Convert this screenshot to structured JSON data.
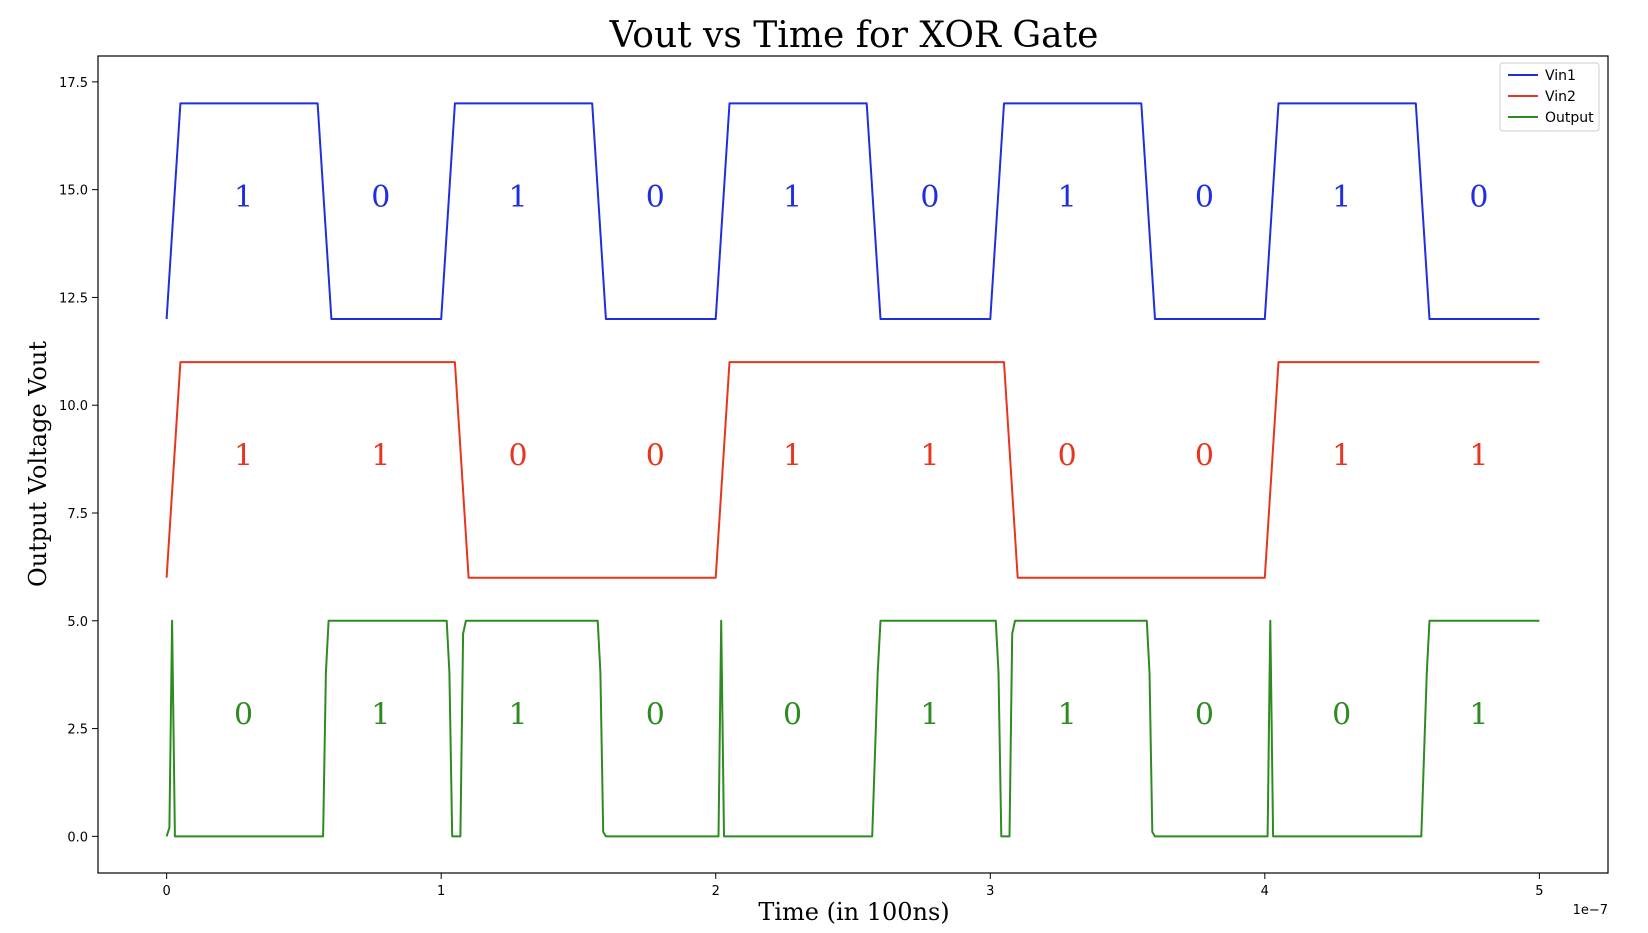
{
  "chart_data": {
    "type": "line",
    "title": "Vout vs Time for XOR Gate",
    "xlabel": "Time (in 100ns)",
    "ylabel": "Output Voltage Vout",
    "x_offset_label": "1e−7",
    "xlim": [
      -0.25,
      5.25
    ],
    "ylim": [
      -0.85,
      18.1
    ],
    "x_ticks": [
      0,
      1,
      2,
      3,
      4,
      5
    ],
    "x_tick_labels": [
      "0",
      "1",
      "2",
      "3",
      "4",
      "5"
    ],
    "y_ticks": [
      0.0,
      2.5,
      5.0,
      7.5,
      10.0,
      12.5,
      15.0,
      17.5
    ],
    "y_tick_labels": [
      "0.0",
      "2.5",
      "5.0",
      "7.5",
      "10.0",
      "12.5",
      "15.0",
      "17.5"
    ],
    "grid": false,
    "legend_position": "top-right",
    "series": [
      {
        "name": "Vin1",
        "color": "#1f2fe0",
        "x": [
          0,
          0.05,
          0.55,
          0.6,
          1.0,
          1.05,
          1.55,
          1.6,
          2.0,
          2.05,
          2.55,
          2.6,
          3.0,
          3.05,
          3.55,
          3.6,
          4.0,
          4.05,
          4.55,
          4.6,
          5.0
        ],
        "y": [
          12,
          17,
          17,
          12,
          12,
          17,
          17,
          12,
          12,
          17,
          17,
          12,
          12,
          17,
          17,
          12,
          12,
          17,
          17,
          12,
          12
        ]
      },
      {
        "name": "Vin2",
        "color": "#e8351f",
        "x": [
          0,
          0.05,
          1.05,
          1.1,
          2.0,
          2.05,
          3.05,
          3.1,
          4.0,
          4.05,
          5.0
        ],
        "y": [
          6,
          11,
          11,
          6,
          6,
          11,
          11,
          6,
          6,
          11,
          11
        ]
      },
      {
        "name": "Output",
        "color": "#2e8b22",
        "x": [
          0,
          0.01,
          0.02,
          0.03,
          0.55,
          0.57,
          0.58,
          0.59,
          1.02,
          1.03,
          1.04,
          1.07,
          1.08,
          1.09,
          1.57,
          1.58,
          1.59,
          1.6,
          2.01,
          2.02,
          2.03,
          2.57,
          2.59,
          2.6,
          3.02,
          3.03,
          3.04,
          3.07,
          3.08,
          3.09,
          3.57,
          3.58,
          3.59,
          3.6,
          4.01,
          4.02,
          4.03,
          4.57,
          4.59,
          4.6,
          5.0
        ],
        "y": [
          0,
          0.2,
          5,
          0,
          0,
          0,
          3.8,
          5,
          5,
          3.8,
          0,
          0,
          4.7,
          5,
          5,
          3.8,
          0.1,
          0,
          0,
          5,
          0,
          0,
          3.8,
          5,
          5,
          3.8,
          0,
          0,
          4.7,
          5,
          5,
          3.8,
          0.1,
          0,
          0,
          5,
          0,
          0,
          3.8,
          5,
          5
        ]
      }
    ],
    "annotations": [
      {
        "series": "Vin1",
        "y": 14.6,
        "x": [
          0.28,
          0.78,
          1.28,
          1.78,
          2.28,
          2.78,
          3.28,
          3.78,
          4.28,
          4.78
        ],
        "text": [
          "1",
          "0",
          "1",
          "0",
          "1",
          "0",
          "1",
          "0",
          "1",
          "0"
        ]
      },
      {
        "series": "Vin2",
        "y": 8.6,
        "x": [
          0.28,
          0.78,
          1.28,
          1.78,
          2.28,
          2.78,
          3.28,
          3.78,
          4.28,
          4.78
        ],
        "text": [
          "1",
          "1",
          "0",
          "0",
          "1",
          "1",
          "0",
          "0",
          "1",
          "1"
        ]
      },
      {
        "series": "Output",
        "y": 2.6,
        "x": [
          0.28,
          0.78,
          1.28,
          1.78,
          2.28,
          2.78,
          3.28,
          3.78,
          4.28,
          4.78
        ],
        "text": [
          "0",
          "1",
          "1",
          "0",
          "0",
          "1",
          "1",
          "0",
          "0",
          "1"
        ]
      }
    ]
  }
}
